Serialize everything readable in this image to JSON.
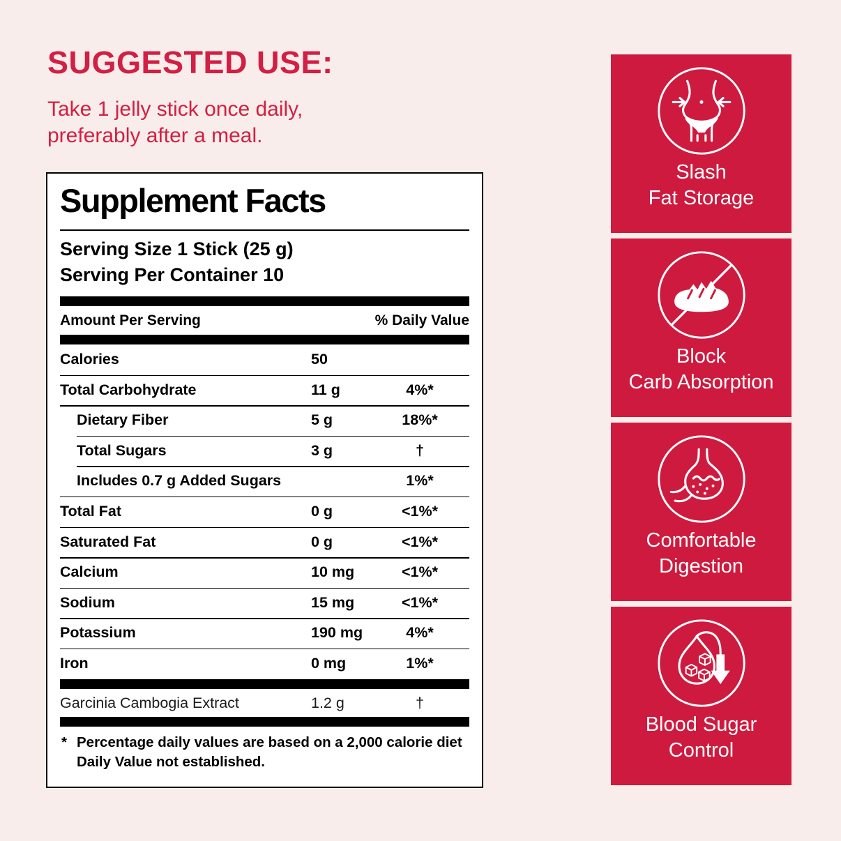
{
  "colors": {
    "page_bg": "#F8EDEA",
    "text_red": "#D21F43",
    "card_red": "#CE1A3E",
    "panel_black": "#000000"
  },
  "suggested_use": {
    "title": "SUGGESTED USE:",
    "line1": "Take 1 jelly stick once daily,",
    "line2": "preferably after a meal."
  },
  "panel": {
    "title": "Supplement Facts",
    "serving_size": "Serving Size 1 Stick (25 g)",
    "servings_per_container": "Serving Per Container 10",
    "header": {
      "left": "Amount Per Serving",
      "right": "% Daily Value"
    },
    "rows": [
      {
        "label": "Calories",
        "amount": "50",
        "dv": "",
        "indent": false,
        "rule": "none"
      },
      {
        "label": "Total Carbohydrate",
        "amount": "11 g",
        "dv": "4%*",
        "indent": false,
        "rule": "full"
      },
      {
        "label": "Dietary Fiber",
        "amount": "5 g",
        "dv": "18%*",
        "indent": true,
        "rule": "full"
      },
      {
        "label": "Total Sugars",
        "amount": "3 g",
        "dv": "†",
        "indent": true,
        "rule": "indent"
      },
      {
        "label": "Includes 0.7 g Added Sugars",
        "amount": "",
        "dv": "1%*",
        "indent": true,
        "rule": "indent"
      },
      {
        "label": "Total Fat",
        "amount": "0 g",
        "dv": "<1%*",
        "indent": false,
        "rule": "full"
      },
      {
        "label": "Saturated Fat",
        "amount": "0 g",
        "dv": "<1%*",
        "indent": false,
        "rule": "full"
      },
      {
        "label": "Calcium",
        "amount": "10 mg",
        "dv": "<1%*",
        "indent": false,
        "rule": "full"
      },
      {
        "label": "Sodium",
        "amount": "15 mg",
        "dv": "<1%*",
        "indent": false,
        "rule": "full"
      },
      {
        "label": "Potassium",
        "amount": "190 mg",
        "dv": "4%*",
        "indent": false,
        "rule": "full"
      },
      {
        "label": "Iron",
        "amount": "0 mg",
        "dv": "1%*",
        "indent": false,
        "rule": "full"
      }
    ],
    "extract_row": {
      "label": "Garcinia Cambogia Extract",
      "amount": "1.2 g",
      "dv": "†"
    },
    "footnote_marker": "*",
    "footnote_line1": "Percentage daily values are based on a 2,000 calorie diet",
    "footnote_line2": "Daily Value not established."
  },
  "benefits": {
    "cards": [
      {
        "icon": "slash-fat-storage-icon",
        "line1": "Slash",
        "line2": "Fat Storage"
      },
      {
        "icon": "block-carb-absorption-icon",
        "line1": "Block",
        "line2": "Carb Absorption"
      },
      {
        "icon": "comfortable-digestion-icon",
        "line1": "Comfortable",
        "line2": "Digestion"
      },
      {
        "icon": "blood-sugar-control-icon",
        "line1": "Blood Sugar",
        "line2": "Control"
      }
    ]
  }
}
